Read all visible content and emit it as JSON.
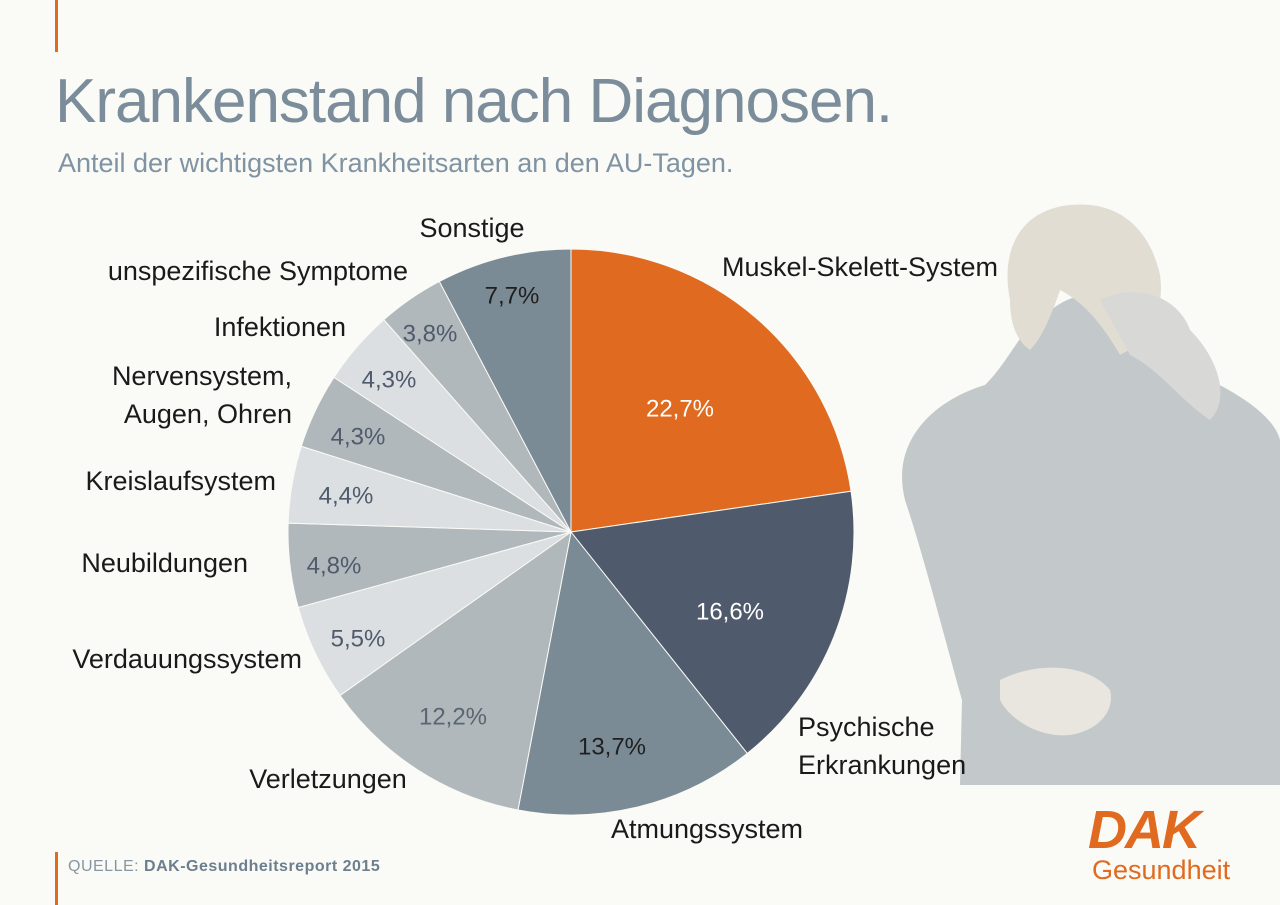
{
  "header": {
    "title": "Krankenstand nach Diagnosen.",
    "subtitle": "Anteil der wichtigsten Krankheitsarten an den AU-Tagen."
  },
  "source": {
    "label": "QUELLE:",
    "value": "DAK-Gesundheitsreport 2015"
  },
  "logo": {
    "mark": "DAK",
    "sub": "Gesundheit"
  },
  "colors": {
    "accent": "#e06a1f",
    "title": "#7b8c9a",
    "dark_slate": "#4f5b6c",
    "slate": "#7b8b96",
    "grey": "#b0b8bb",
    "light_grey": "#dcdfe2"
  },
  "chart_data": {
    "type": "pie",
    "title": "Krankenstand nach Diagnosen.",
    "subtitle": "Anteil der wichtigsten Krankheitsarten an den AU-Tagen.",
    "unit": "%",
    "start": "12 o'clock, clockwise",
    "slices": [
      {
        "name": "Muskel-Skelett-System",
        "value": 22.7,
        "value_label": "22,7%",
        "color": "#e06a1f",
        "text_color": "#ffffff"
      },
      {
        "name": "Psychische Erkrankungen",
        "name_lines": [
          "Psychische",
          "Erkrankungen"
        ],
        "value": 16.6,
        "value_label": "16,6%",
        "color": "#4f5b6c",
        "text_color": "#ffffff"
      },
      {
        "name": "Atmungssystem",
        "value": 13.7,
        "value_label": "13,7%",
        "color": "#7b8b96",
        "text_color": "#1f1f1f"
      },
      {
        "name": "Verletzungen",
        "value": 12.2,
        "value_label": "12,2%",
        "color": "#b0b8bb",
        "text_color": "#5a6672"
      },
      {
        "name": "Verdauungssystem",
        "value": 5.5,
        "value_label": "5,5%",
        "color": "#dcdfe2",
        "text_color": "#4f5b6c"
      },
      {
        "name": "Neubildungen",
        "value": 4.8,
        "value_label": "4,8%",
        "color": "#b0b8bb",
        "text_color": "#4f5b6c"
      },
      {
        "name": "Kreislaufsystem",
        "value": 4.4,
        "value_label": "4,4%",
        "color": "#dcdfe2",
        "text_color": "#4f5b6c"
      },
      {
        "name": "Nervensystem, Augen, Ohren",
        "name_lines": [
          "Nervensystem,",
          "Augen, Ohren"
        ],
        "value": 4.3,
        "value_label": "4,3%",
        "color": "#b0b8bb",
        "text_color": "#4f5b6c"
      },
      {
        "name": "Infektionen",
        "value": 4.3,
        "value_label": "4,3%",
        "color": "#dcdfe2",
        "text_color": "#4f5b6c"
      },
      {
        "name": "unspezifische Symptome",
        "value": 3.8,
        "value_label": "3,8%",
        "color": "#b0b8bb",
        "text_color": "#4f5b6c"
      },
      {
        "name": "Sonstige",
        "value": 7.7,
        "value_label": "7,7%",
        "color": "#7b8b96",
        "text_color": "#1f1f1f"
      }
    ]
  }
}
